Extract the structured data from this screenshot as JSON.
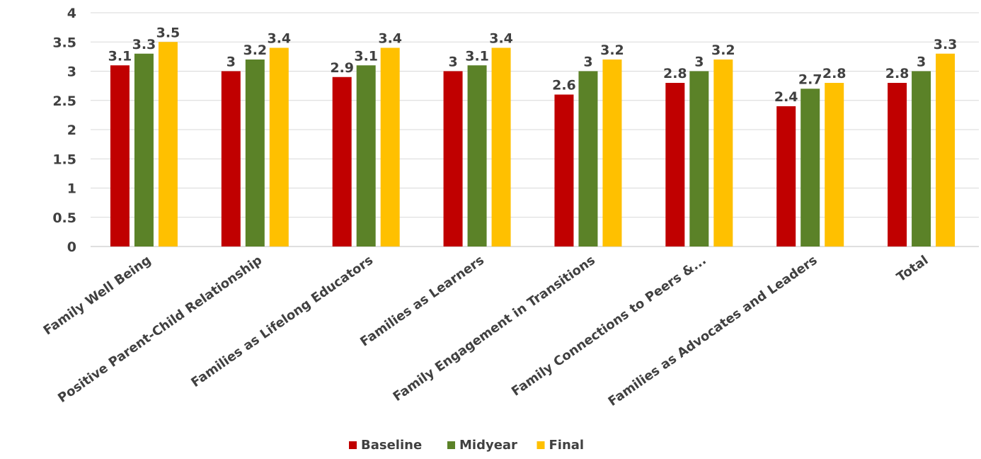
{
  "chart_data": {
    "type": "bar",
    "title": "",
    "xlabel": "",
    "ylabel": "",
    "ylim": [
      0,
      4
    ],
    "yticks": [
      "0",
      "0.5",
      "1",
      "1.5",
      "2",
      "2.5",
      "3",
      "3.5",
      "4"
    ],
    "grid": true,
    "legend_position": "bottom",
    "categories": [
      "Family Well Being",
      "Positive Parent-Child Relationship",
      "Families as Lifelong Educators",
      "Families as Learners",
      "Family Engagement in Transitions",
      "Family Connections to Peers &...",
      "Families as Advocates and Leaders",
      "Total"
    ],
    "series": [
      {
        "name": "Baseline",
        "color": "#c00000",
        "values": [
          3.1,
          3,
          2.9,
          3,
          2.6,
          2.8,
          2.4,
          2.8
        ]
      },
      {
        "name": "Midyear",
        "color": "#5b8228",
        "values": [
          3.3,
          3.2,
          3.1,
          3.1,
          3,
          3,
          2.7,
          3
        ]
      },
      {
        "name": "Final",
        "color": "#ffc000",
        "values": [
          3.5,
          3.4,
          3.4,
          3.4,
          3.2,
          3.2,
          2.8,
          3.3
        ]
      }
    ]
  }
}
